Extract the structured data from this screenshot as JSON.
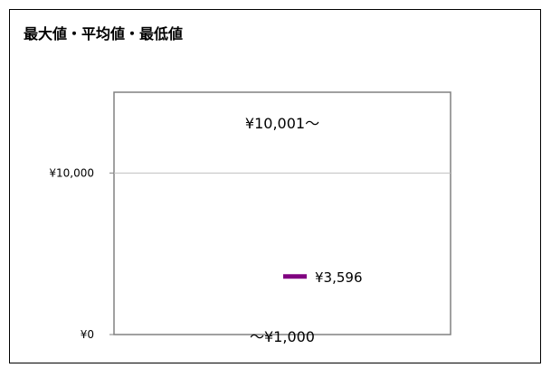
{
  "chart_data": {
    "type": "line",
    "title": "最大値・平均値・最低値",
    "ylim": [
      0,
      15000
    ],
    "yticks": [
      {
        "value": 0,
        "label": "¥0"
      },
      {
        "value": 10000,
        "label": "¥10,000"
      }
    ],
    "grid": true,
    "annotations": {
      "top": "¥10,001～",
      "bottom": "～¥1,000"
    },
    "series": [
      {
        "values": [
          3596
        ],
        "labels": [
          "¥3,596"
        ],
        "color": "#800080"
      }
    ]
  }
}
